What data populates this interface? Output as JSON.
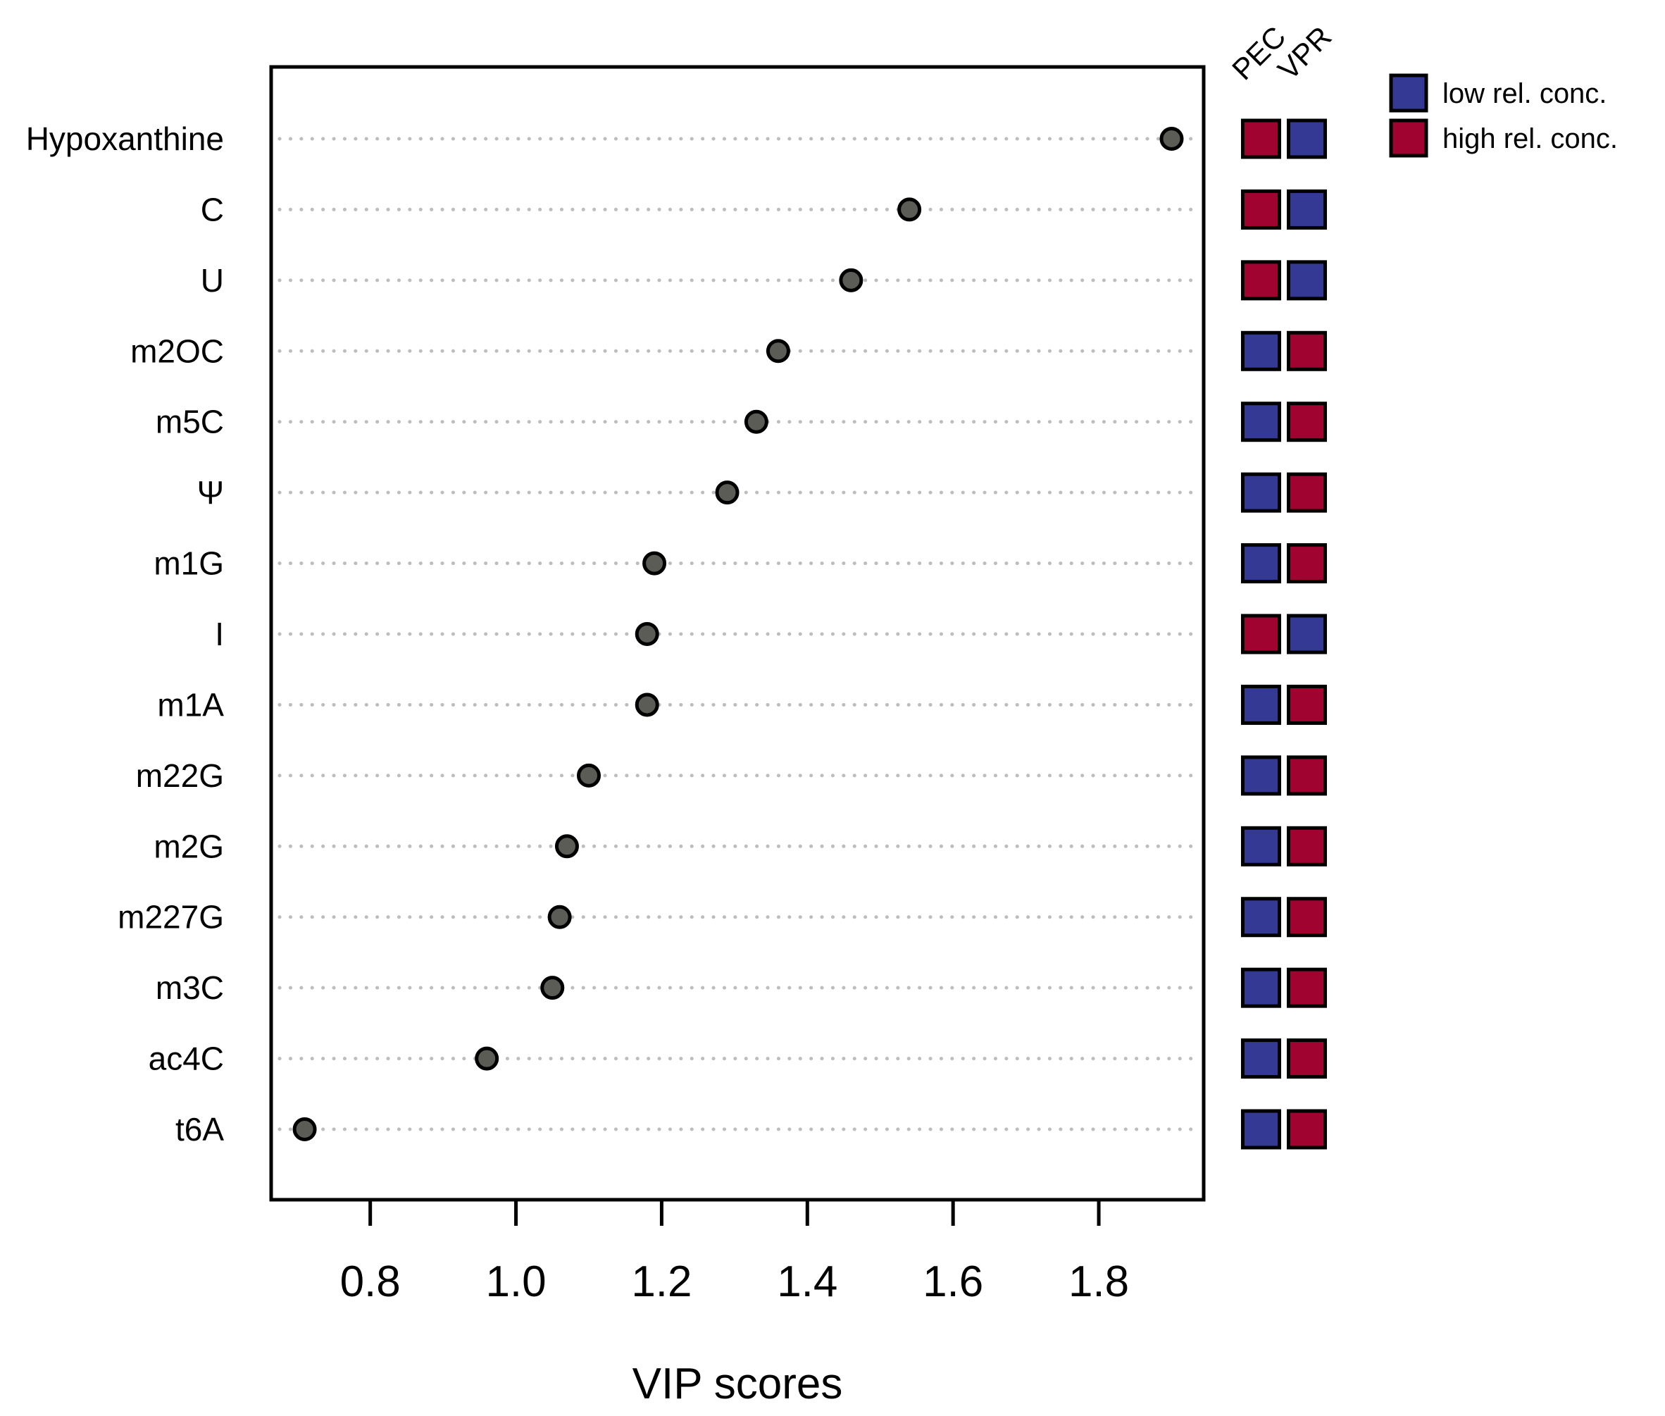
{
  "figure": {
    "background": "#FFFFFF"
  },
  "chart_data": {
    "type": "scatter",
    "subtype": "horizontal-dot-plot-vip",
    "title": "",
    "xlabel": "VIP scores",
    "ylabel": "",
    "categories": [
      "Hypoxanthine",
      "C",
      "U",
      "m2OC",
      "m5C",
      "Ψ",
      "m1G",
      "I",
      "m1A",
      "m22G",
      "m2G",
      "m227G",
      "m3C",
      "ac4C",
      "t6A"
    ],
    "values": [
      1.9,
      1.54,
      1.46,
      1.36,
      1.33,
      1.29,
      1.19,
      1.18,
      1.18,
      1.1,
      1.07,
      1.06,
      1.05,
      0.96,
      0.71
    ],
    "xlim": [
      0.664,
      1.944
    ],
    "x_ticks": [
      "0.8",
      "1.0",
      "1.2",
      "1.4",
      "1.6",
      "1.8"
    ],
    "grid": "dotted-horizontal",
    "grid_color": "#BDBDBD",
    "dot_color": "#5C5C56",
    "dot_border_color": "#000000",
    "heatmap": {
      "columns": [
        "PEC",
        "VPR"
      ],
      "levels": {
        "low": "#343A94",
        "high": "#A10330"
      },
      "cell_border_color": "#000000",
      "cells": [
        [
          "high",
          "low"
        ],
        [
          "high",
          "low"
        ],
        [
          "high",
          "low"
        ],
        [
          "low",
          "high"
        ],
        [
          "low",
          "high"
        ],
        [
          "low",
          "high"
        ],
        [
          "low",
          "high"
        ],
        [
          "high",
          "low"
        ],
        [
          "low",
          "high"
        ],
        [
          "low",
          "high"
        ],
        [
          "low",
          "high"
        ],
        [
          "low",
          "high"
        ],
        [
          "low",
          "high"
        ],
        [
          "low",
          "high"
        ],
        [
          "low",
          "high"
        ]
      ]
    },
    "legend": {
      "position": "top-right",
      "items": [
        {
          "label": "low rel. conc.",
          "level": "low",
          "color": "#343A94"
        },
        {
          "label": "high rel. conc.",
          "level": "high",
          "color": "#A10330"
        }
      ]
    }
  }
}
